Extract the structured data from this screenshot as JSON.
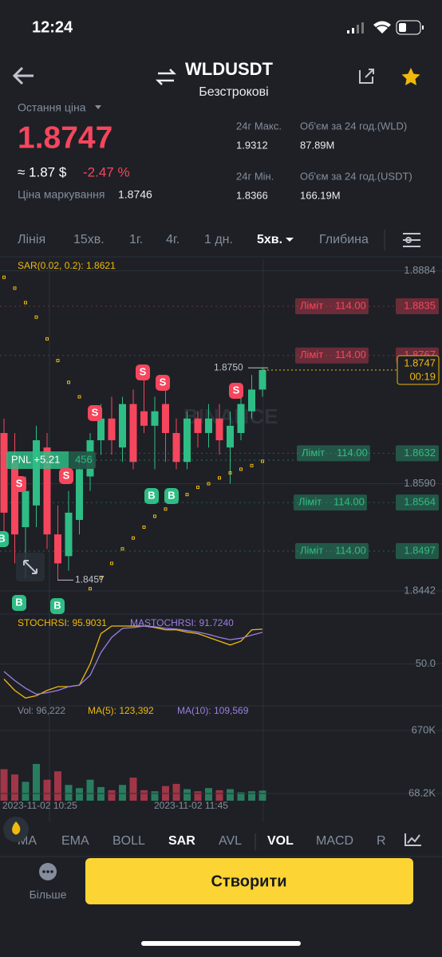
{
  "status_bar": {
    "time": "12:24"
  },
  "header": {
    "symbol": "WLDUSDT",
    "subtitle": "Безстрокові"
  },
  "price": {
    "label": "Остання ціна",
    "last": "1.8747",
    "approx": "≈ 1.87 $",
    "change": "-2.47 %",
    "mark_label": "Ціна маркування",
    "mark": "1.8746"
  },
  "stats": [
    {
      "label": "24г Макс.",
      "value": "1.9312"
    },
    {
      "label": "Об'єм за 24 год.(WLD)",
      "value": "87.89M"
    },
    {
      "label": "24г Мін.",
      "value": "1.8366"
    },
    {
      "label": "Об'єм за 24 год.(USDT)",
      "value": "166.19M"
    }
  ],
  "timeframes": [
    "Лінія",
    "15хв.",
    "1г.",
    "4г.",
    "1 дн.",
    "5хв.",
    "Глибина"
  ],
  "timeframe_active": 5,
  "chart": {
    "sar_label": "SAR(0.02, 0.2): 1.8621",
    "watermark": "BINANCE",
    "ylim": [
      1.841,
      1.89
    ],
    "yticks": [
      1.8884,
      {
        "value": 1.859,
        "label": "1.8590"
      },
      1.8442
    ],
    "up_color": "#2ebd85",
    "down_color": "#f6465d",
    "sar_color": "#f0b90b",
    "candles": [
      {
        "o": 1.866,
        "h": 1.868,
        "l": 1.852,
        "c": 1.855
      },
      {
        "o": 1.862,
        "h": 1.866,
        "l": 1.848,
        "c": 1.852
      },
      {
        "o": 1.853,
        "h": 1.86,
        "l": 1.846,
        "c": 1.858
      },
      {
        "o": 1.856,
        "h": 1.867,
        "l": 1.853,
        "c": 1.865
      },
      {
        "o": 1.864,
        "h": 1.866,
        "l": 1.85,
        "c": 1.852
      },
      {
        "o": 1.852,
        "h": 1.856,
        "l": 1.8457,
        "c": 1.848
      },
      {
        "o": 1.849,
        "h": 1.858,
        "l": 1.847,
        "c": 1.855
      },
      {
        "o": 1.854,
        "h": 1.862,
        "l": 1.852,
        "c": 1.861
      },
      {
        "o": 1.86,
        "h": 1.866,
        "l": 1.858,
        "c": 1.865
      },
      {
        "o": 1.865,
        "h": 1.87,
        "l": 1.863,
        "c": 1.868
      },
      {
        "o": 1.868,
        "h": 1.871,
        "l": 1.863,
        "c": 1.865
      },
      {
        "o": 1.864,
        "h": 1.871,
        "l": 1.862,
        "c": 1.87
      },
      {
        "o": 1.87,
        "h": 1.872,
        "l": 1.861,
        "c": 1.862
      },
      {
        "o": 1.869,
        "h": 1.875,
        "l": 1.866,
        "c": 1.867
      },
      {
        "o": 1.867,
        "h": 1.871,
        "l": 1.861,
        "c": 1.869
      },
      {
        "o": 1.87,
        "h": 1.872,
        "l": 1.862,
        "c": 1.866
      },
      {
        "o": 1.866,
        "h": 1.868,
        "l": 1.861,
        "c": 1.862
      },
      {
        "o": 1.862,
        "h": 1.869,
        "l": 1.861,
        "c": 1.868
      },
      {
        "o": 1.868,
        "h": 1.869,
        "l": 1.864,
        "c": 1.866
      },
      {
        "o": 1.866,
        "h": 1.87,
        "l": 1.864,
        "c": 1.868
      },
      {
        "o": 1.868,
        "h": 1.87,
        "l": 1.863,
        "c": 1.865
      },
      {
        "o": 1.864,
        "h": 1.869,
        "l": 1.859,
        "c": 1.867
      },
      {
        "o": 1.866,
        "h": 1.871,
        "l": 1.865,
        "c": 1.87
      },
      {
        "o": 1.869,
        "h": 1.874,
        "l": 1.868,
        "c": 1.872
      },
      {
        "o": 1.872,
        "h": 1.875,
        "l": 1.871,
        "c": 1.8747
      }
    ],
    "sar": [
      1.8875,
      1.886,
      1.884,
      1.882,
      1.879,
      1.876,
      1.873,
      1.871,
      1.8445,
      1.846,
      1.848,
      1.85,
      1.8515,
      1.853,
      1.8545,
      1.8555,
      1.8565,
      1.8575,
      1.8585,
      1.859,
      1.8598,
      1.8605,
      1.861,
      1.8615,
      1.8621
    ],
    "last_price": 1.8747,
    "last_price_label": "1.8747",
    "countdown": "00:19",
    "high": {
      "value": 1.875,
      "label": "1.8750"
    },
    "low": {
      "value": 1.8457,
      "label": "1.8457"
    },
    "orders": [
      {
        "type": "Ліміт",
        "qty": "114.00",
        "price": 1.8835,
        "color": "#f6465d"
      },
      {
        "type": "Ліміт",
        "qty": "114.00",
        "price": 1.8767,
        "color": "#f6465d"
      },
      {
        "type": "Ліміт",
        "qty": "114.00",
        "price": 1.8632,
        "color": "#2ebd85"
      },
      {
        "type": "Ліміт",
        "qty": "114.00",
        "price": 1.8564,
        "color": "#2ebd85"
      },
      {
        "type": "Ліміт",
        "qty": "114.00",
        "price": 1.8497,
        "color": "#2ebd85"
      }
    ],
    "pnl": {
      "label": "PNL +5.21",
      "qty": "456"
    },
    "markers": [
      "S",
      "S",
      "S",
      "S",
      "S",
      "S",
      "B",
      "B",
      "B",
      "B",
      "B"
    ]
  },
  "stoch": {
    "label": "STOCHRSI: 95.9031",
    "ma_label": "MASTOCHRSI: 91.7240",
    "ylim": [
      0,
      100
    ],
    "yticks": [
      {
        "value": 50,
        "label": "50.0"
      }
    ],
    "color": "#f0b90b",
    "ma_color": "#9b7fe0",
    "values": [
      30,
      15,
      5,
      8,
      15,
      20,
      20,
      22,
      50,
      90,
      100,
      100,
      100,
      100,
      98,
      95,
      95,
      92,
      90,
      85,
      80,
      75,
      80,
      95,
      95.9031
    ],
    "ma_values": [
      40,
      28,
      18,
      10,
      12,
      15,
      20,
      22,
      35,
      65,
      85,
      97,
      98,
      100,
      99,
      97,
      96,
      94,
      92,
      89,
      85,
      82,
      84,
      88,
      91.724
    ]
  },
  "volume": {
    "label": "Vol: 96,222",
    "ma5_label": "MA(5): 123,392",
    "ma10_label": "MA(10): 109,569",
    "ylim": [
      0,
      760000
    ],
    "yticks": [
      {
        "value": 670000,
        "label": "670K"
      },
      {
        "value": 68200,
        "label": "68.2K"
      }
    ],
    "values": [
      300000,
      250000,
      180000,
      350000,
      200000,
      280000,
      150000,
      120000,
      200000,
      130000,
      100000,
      150000,
      220000,
      100000,
      90000,
      140000,
      160000,
      110000,
      90000,
      120000,
      100000,
      110000,
      80000,
      90000,
      96222
    ]
  },
  "dates": [
    "2023-11-02 10:25",
    "2023-11-02 11:45"
  ],
  "indicators": [
    "MA",
    "EMA",
    "BOLL",
    "SAR",
    "AVL",
    "VOL",
    "MACD",
    "R"
  ],
  "indicators_active": [
    3,
    5
  ],
  "footer": {
    "more": "Більше",
    "create": "Створити"
  }
}
